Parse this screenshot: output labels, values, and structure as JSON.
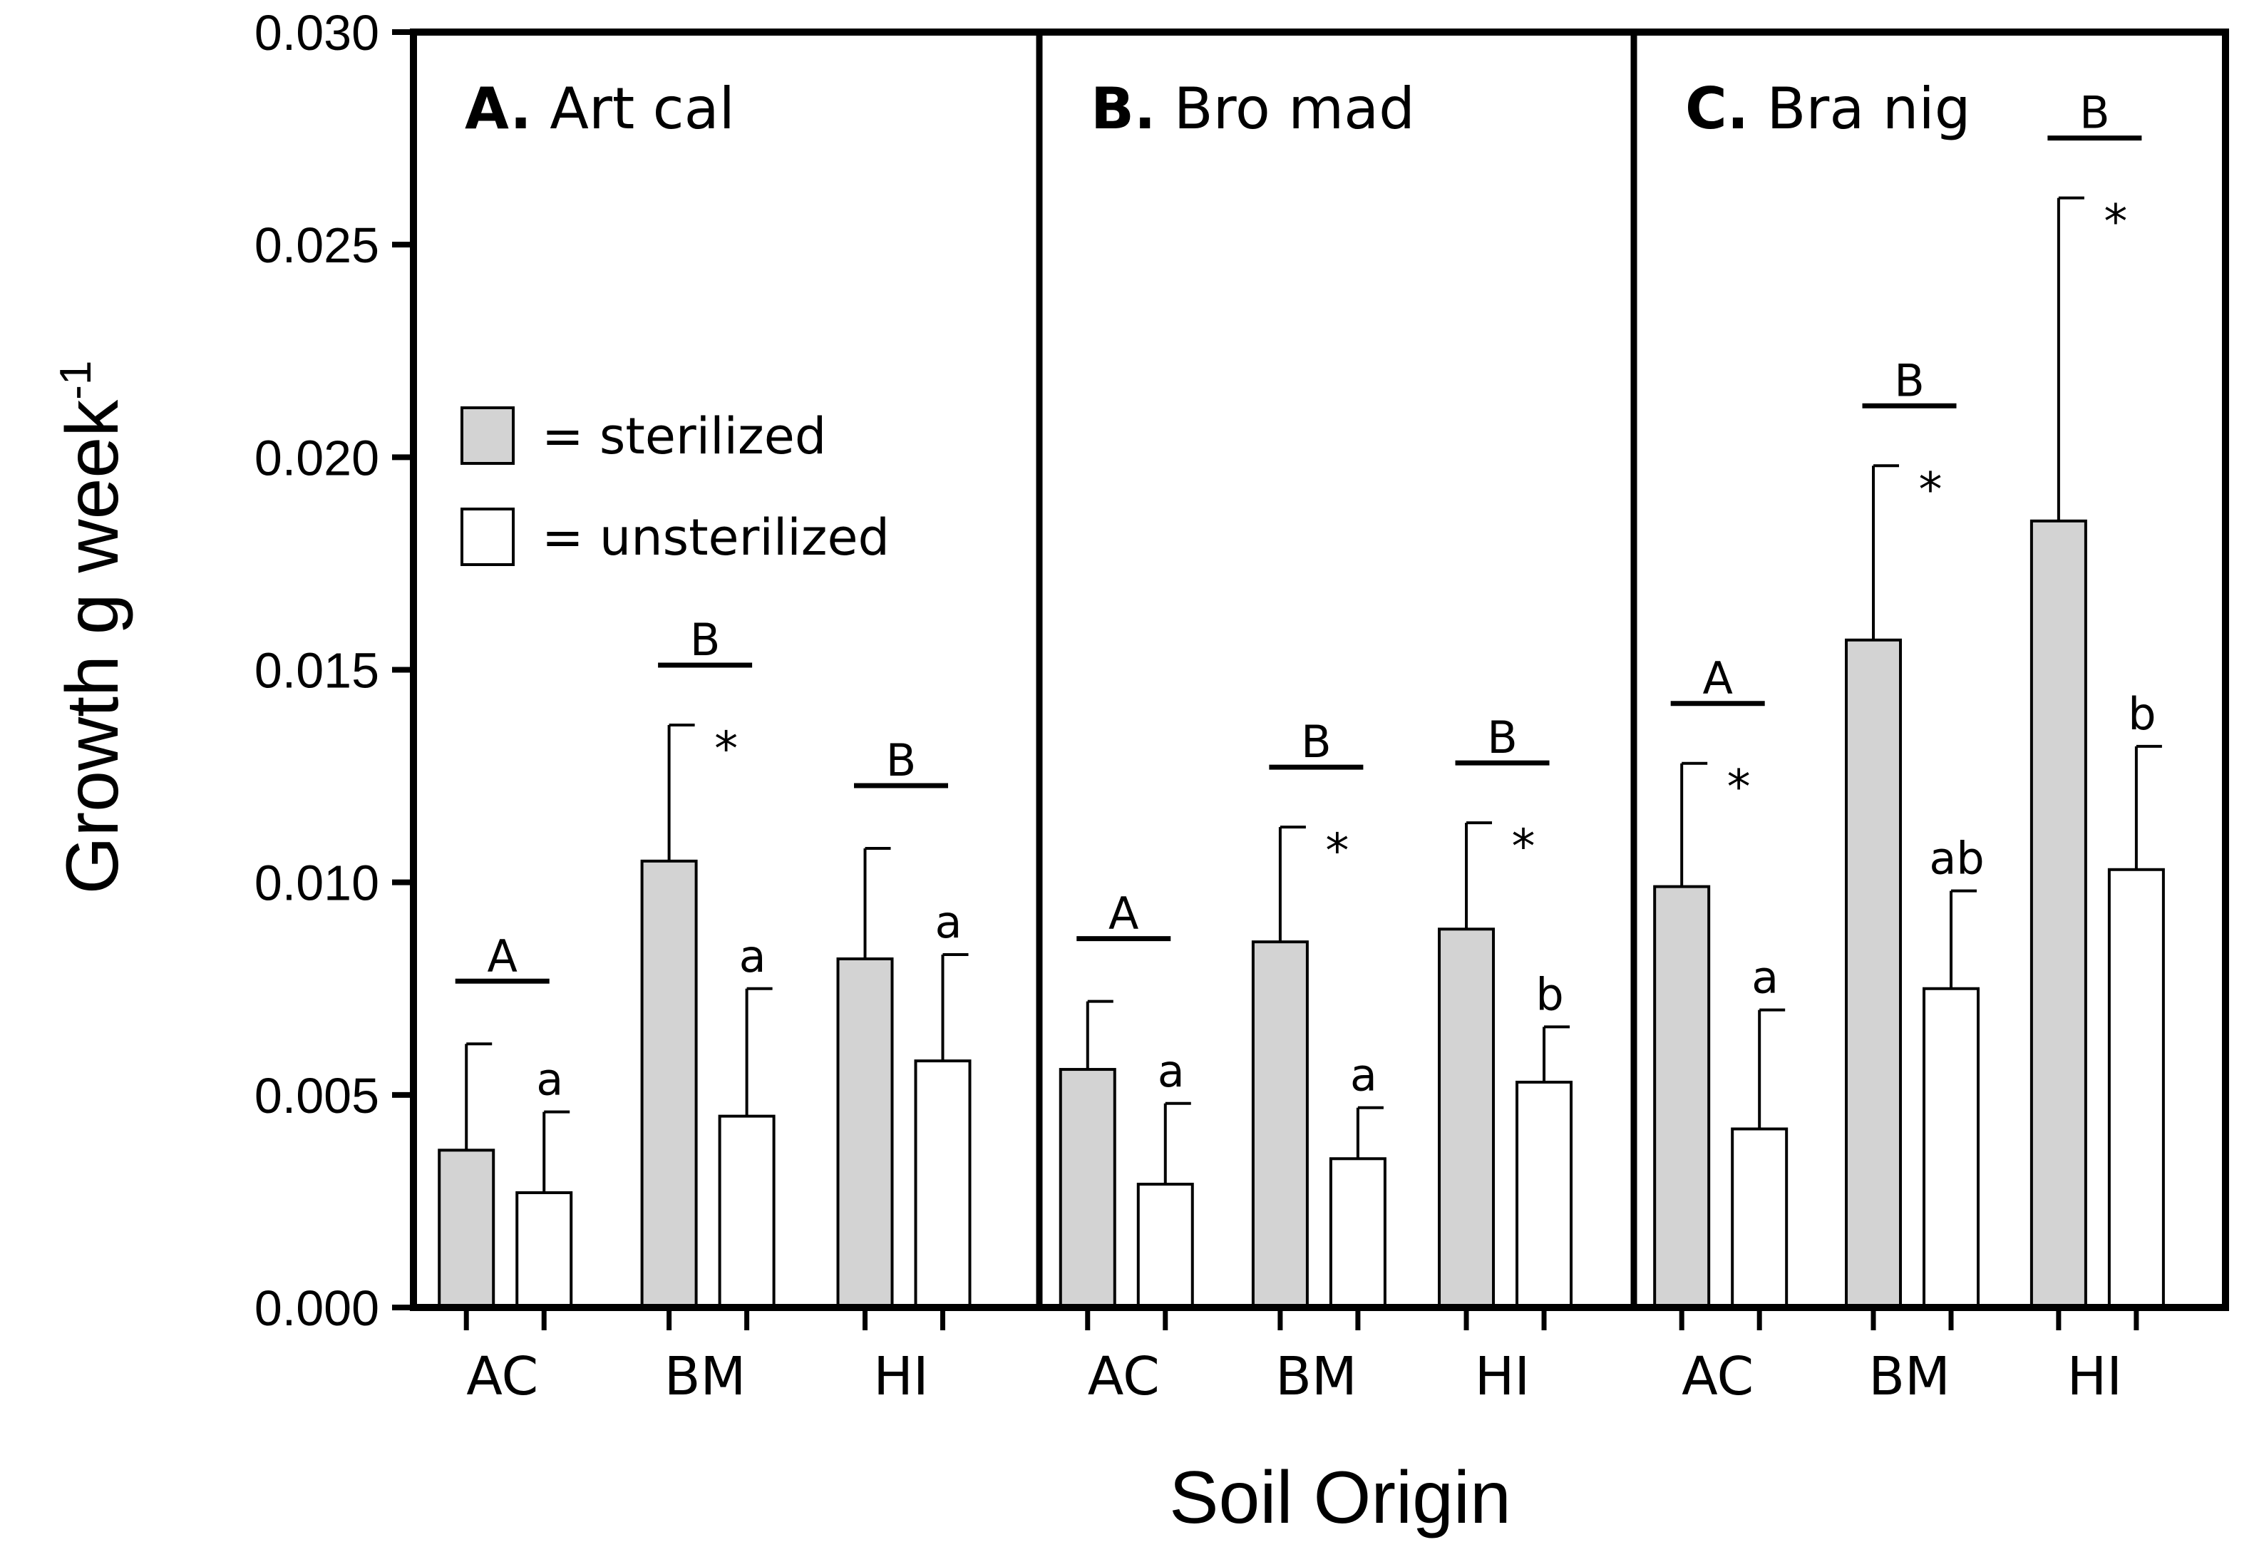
{
  "chart_data": {
    "type": "bar",
    "ylabel_main": "Growth g week",
    "ylabel_sup": "-1",
    "xlabel": "Soil Origin",
    "ylim": [
      0,
      0.03
    ],
    "yticks": [
      "0.000",
      "0.005",
      "0.010",
      "0.015",
      "0.020",
      "0.025",
      "0.030"
    ],
    "ytick_values": [
      0,
      0.005,
      0.01,
      0.015,
      0.02,
      0.025,
      0.03
    ],
    "colors": {
      "sterilized": "#d3d3d3",
      "unsterilized": "#ffffff",
      "stroke": "#000000"
    },
    "legend": [
      {
        "label": "= sterilized",
        "color": "#d3d3d3"
      },
      {
        "label": "= unsterilized",
        "color": "#ffffff"
      }
    ],
    "panels": [
      {
        "prefix": "A.",
        "species": "Art cal",
        "groups": [
          {
            "label": "AC",
            "sterilized": 0.0037,
            "sterilized_err": 0.0025,
            "unsterilized": 0.0027,
            "unsterilized_err": 0.0019,
            "upper_letter": "A",
            "lower_letter": "a",
            "star": ""
          },
          {
            "label": "BM",
            "sterilized": 0.0105,
            "sterilized_err": 0.0032,
            "unsterilized": 0.0045,
            "unsterilized_err": 0.003,
            "upper_letter": "B",
            "lower_letter": "a",
            "star": "*"
          },
          {
            "label": "HI",
            "sterilized": 0.0082,
            "sterilized_err": 0.0026,
            "unsterilized": 0.0058,
            "unsterilized_err": 0.0025,
            "upper_letter": "B",
            "lower_letter": "a",
            "star": ""
          }
        ]
      },
      {
        "prefix": "B.",
        "species": "Bro mad",
        "groups": [
          {
            "label": "AC",
            "sterilized": 0.0056,
            "sterilized_err": 0.0016,
            "unsterilized": 0.0029,
            "unsterilized_err": 0.0019,
            "upper_letter": "A",
            "lower_letter": "a",
            "star": ""
          },
          {
            "label": "BM",
            "sterilized": 0.0086,
            "sterilized_err": 0.0027,
            "unsterilized": 0.0035,
            "unsterilized_err": 0.0012,
            "upper_letter": "B",
            "lower_letter": "a",
            "star": "*"
          },
          {
            "label": "HI",
            "sterilized": 0.0089,
            "sterilized_err": 0.0025,
            "unsterilized": 0.0053,
            "unsterilized_err": 0.0013,
            "upper_letter": "B",
            "lower_letter": "b",
            "star": "*"
          }
        ]
      },
      {
        "prefix": "C.",
        "species": "Bra nig",
        "groups": [
          {
            "label": "AC",
            "sterilized": 0.0099,
            "sterilized_err": 0.0029,
            "unsterilized": 0.0042,
            "unsterilized_err": 0.0028,
            "upper_letter": "A",
            "lower_letter": "a",
            "star": "*"
          },
          {
            "label": "BM",
            "sterilized": 0.0157,
            "sterilized_err": 0.0041,
            "unsterilized": 0.0075,
            "unsterilized_err": 0.0023,
            "upper_letter": "B",
            "lower_letter": "ab",
            "star": "*"
          },
          {
            "label": "HI",
            "sterilized": 0.0185,
            "sterilized_err": 0.0076,
            "unsterilized": 0.0103,
            "unsterilized_err": 0.0029,
            "upper_letter": "B",
            "lower_letter": "b",
            "star": "*"
          }
        ]
      }
    ]
  }
}
